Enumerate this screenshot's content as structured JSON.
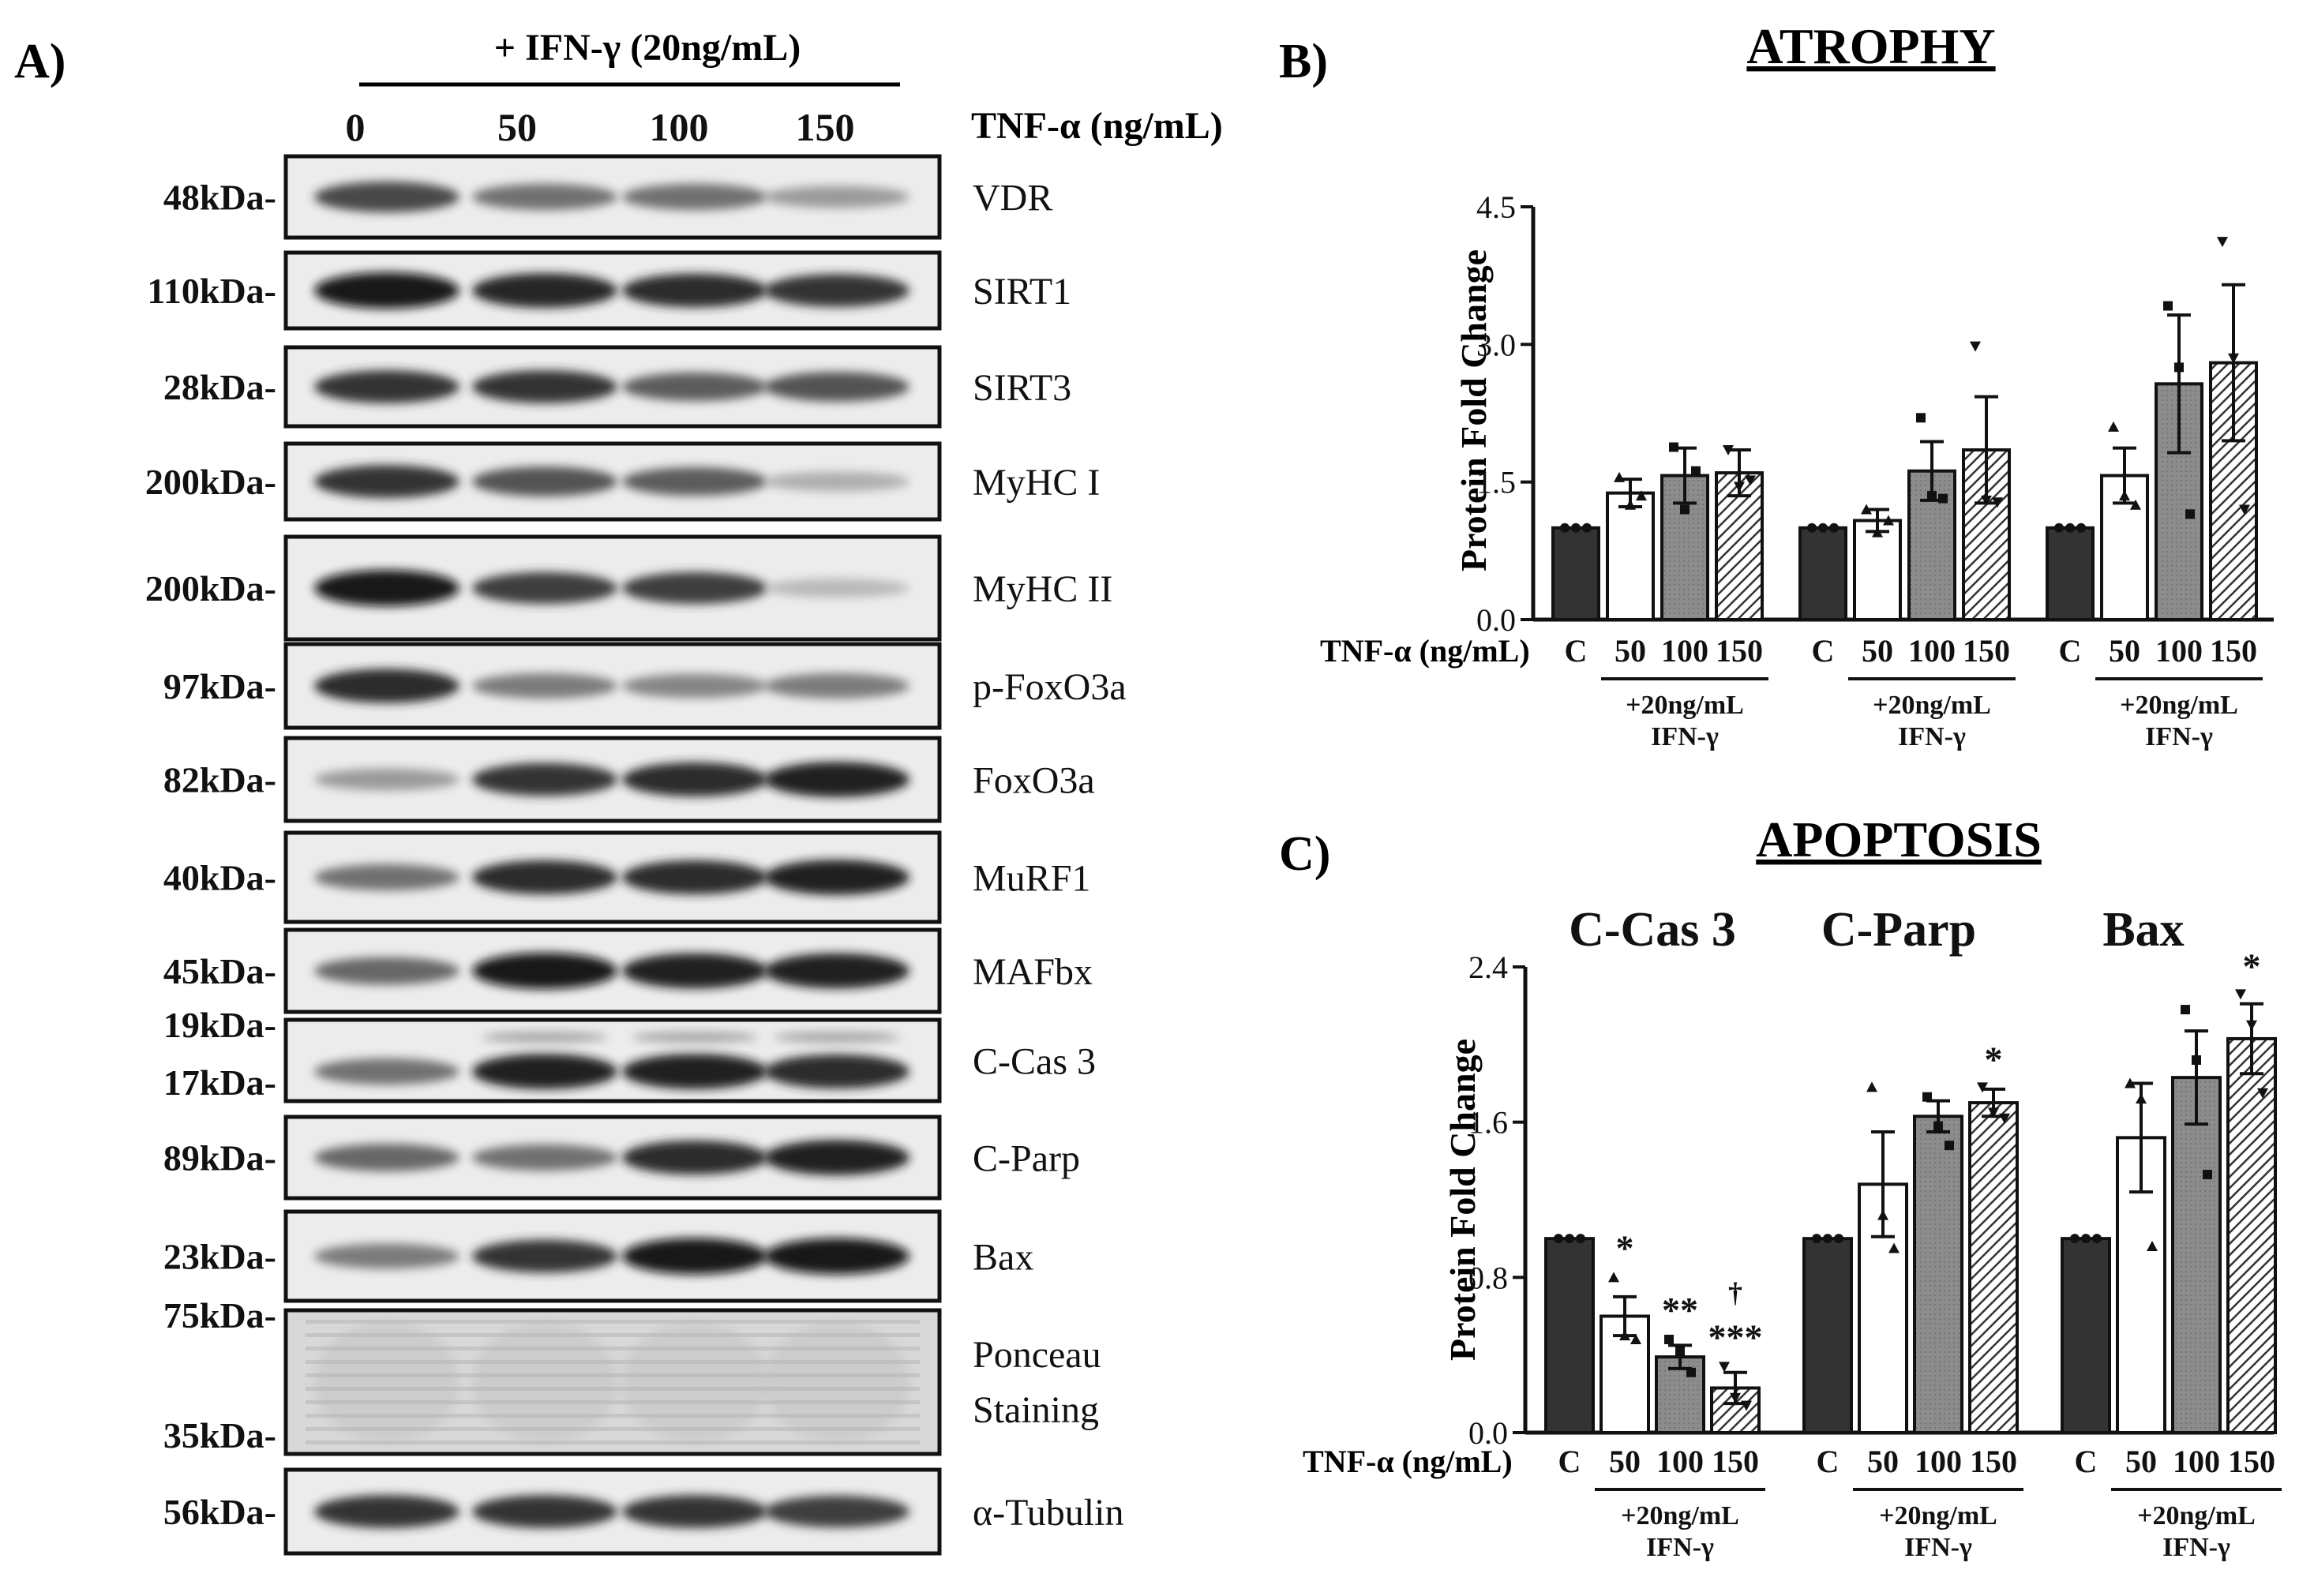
{
  "panelA": {
    "letter": "A)",
    "ifn_label": "+ IFN-γ (20ng/mL)",
    "tnf_label": "TNF-α (ng/mL)",
    "lanes": [
      "0",
      "50",
      "100",
      "150"
    ],
    "blots": [
      {
        "protein": "VDR",
        "kda": [
          "48kDa-"
        ],
        "bands": [
          0.75,
          0.55,
          0.55,
          0.35
        ]
      },
      {
        "protein": "SIRT1",
        "kda": [
          "110kDa-"
        ],
        "bands": [
          1.0,
          0.92,
          0.88,
          0.85
        ]
      },
      {
        "protein": "SIRT3",
        "kda": [
          "28kDa-"
        ],
        "bands": [
          0.85,
          0.85,
          0.65,
          0.7
        ]
      },
      {
        "protein": "MyHC I",
        "kda": [
          "200kDa-"
        ],
        "bands": [
          0.85,
          0.7,
          0.65,
          0.25
        ]
      },
      {
        "protein": "MyHC II",
        "kda": [
          "200kDa-"
        ],
        "bands": [
          1.0,
          0.8,
          0.8,
          0.2
        ]
      },
      {
        "protein": "p-FoxO3a",
        "kda": [
          "97kDa-"
        ],
        "bands": [
          0.9,
          0.5,
          0.45,
          0.5
        ]
      },
      {
        "protein": "FoxO3a",
        "kda": [
          "82kDa-"
        ],
        "bands": [
          0.35,
          0.85,
          0.9,
          0.95
        ]
      },
      {
        "protein": "MuRF1",
        "kda": [
          "40kDa-"
        ],
        "bands": [
          0.55,
          0.9,
          0.9,
          0.95
        ]
      },
      {
        "protein": "MAFbx",
        "kda": [
          "45kDa-"
        ],
        "bands": [
          0.6,
          1.0,
          0.95,
          0.95
        ]
      },
      {
        "protein": "C-Cas 3",
        "kda": [
          "19kDa-",
          "17kDa-"
        ],
        "bands": [
          0.55,
          0.95,
          0.95,
          0.9
        ]
      },
      {
        "protein": "C-Parp",
        "kda": [
          "89kDa-"
        ],
        "bands": [
          0.6,
          0.55,
          0.9,
          0.95
        ]
      },
      {
        "protein": "Bax",
        "kda": [
          "23kDa-"
        ],
        "bands": [
          0.5,
          0.85,
          1.0,
          1.0
        ]
      },
      {
        "protein": "Ponceau Staining",
        "kda": [
          "75kDa-",
          "35kDa-"
        ],
        "bands": [
          0.2,
          0.2,
          0.2,
          0.2
        ]
      },
      {
        "protein": "α-Tubulin",
        "kda": [
          "56kDa-"
        ],
        "bands": [
          0.85,
          0.85,
          0.85,
          0.8
        ]
      }
    ]
  },
  "panelB": {
    "letter": "B)",
    "title": "ATROPHY",
    "ylabel": "Protein Fold Change",
    "yticks": [
      "0.0",
      "1.5",
      "3.0",
      "4.5"
    ],
    "tnf_label": "TNF-α (ng/mL)",
    "cats": [
      "C",
      "50",
      "100",
      "150"
    ],
    "group_note_1": "+20ng/mL",
    "group_note_2": "IFN-γ"
  },
  "panelC": {
    "letter": "C)",
    "title": "APOPTOSIS",
    "ylabel": "Protein Fold Change",
    "yticks": [
      "0.0",
      "0.8",
      "1.6",
      "2.4"
    ],
    "tnf_label": "TNF-α (ng/mL)",
    "cats": [
      "C",
      "50",
      "100",
      "150"
    ],
    "group_names": [
      "C-Cas 3",
      "C-Parp",
      "Bax"
    ],
    "group_note_1": "+20ng/mL",
    "group_note_2": "IFN-γ"
  },
  "chart_data": [
    {
      "type": "bar",
      "title": "ATROPHY",
      "ylabel": "Protein Fold Change",
      "ylim": [
        0,
        4.5
      ],
      "categories": [
        "C",
        "50",
        "100",
        "150"
      ],
      "series": [
        {
          "values": [
            1.0,
            1.38,
            1.57,
            1.6
          ],
          "errors": [
            0,
            0.15,
            0.3,
            0.25
          ],
          "points": [
            [
              1,
              1,
              1
            ],
            [
              1.55,
              1.25,
              1.35
            ],
            [
              1.88,
              1.2,
              1.62
            ],
            [
              1.85,
              1.45,
              1.52
            ]
          ]
        },
        {
          "values": [
            1.0,
            1.08,
            1.62,
            1.85
          ],
          "errors": [
            0,
            0.12,
            0.32,
            0.58
          ],
          "points": [
            [
              1,
              1,
              1
            ],
            [
              1.2,
              0.95,
              1.08
            ],
            [
              2.2,
              1.35,
              1.32
            ],
            [
              2.98,
              1.3,
              1.28
            ]
          ]
        },
        {
          "values": [
            1.0,
            1.57,
            2.57,
            2.8
          ],
          "errors": [
            0,
            0.3,
            0.75,
            0.85
          ],
          "points": [
            [
              1,
              1,
              1
            ],
            [
              2.1,
              1.35,
              1.25
            ],
            [
              3.42,
              2.75,
              1.15
            ],
            [
              4.12,
              2.85,
              1.2
            ]
          ]
        }
      ],
      "significance": []
    },
    {
      "type": "bar",
      "title": "APOPTOSIS",
      "ylabel": "Protein Fold Change",
      "ylim": [
        0,
        2.4
      ],
      "categories": [
        "C",
        "50",
        "100",
        "150"
      ],
      "series": [
        {
          "name": "C-Cas 3",
          "values": [
            1.0,
            0.6,
            0.39,
            0.23
          ],
          "errors": [
            0,
            0.1,
            0.06,
            0.08
          ],
          "points": [
            [
              1,
              1,
              1
            ],
            [
              0.8,
              0.5,
              0.48
            ],
            [
              0.48,
              0.42,
              0.31
            ],
            [
              0.34,
              0.18,
              0.14
            ]
          ]
        },
        {
          "name": "C-Parp",
          "values": [
            1.0,
            1.28,
            1.63,
            1.7
          ],
          "errors": [
            0,
            0.27,
            0.08,
            0.07
          ],
          "points": [
            [
              1,
              1,
              1
            ],
            [
              1.78,
              1.12,
              0.95
            ],
            [
              1.73,
              1.58,
              1.48
            ],
            [
              1.78,
              1.65,
              1.62
            ]
          ]
        },
        {
          "name": "Bax",
          "values": [
            1.0,
            1.52,
            1.83,
            2.03
          ],
          "errors": [
            0,
            0.28,
            0.24,
            0.18
          ],
          "points": [
            [
              1,
              1,
              1
            ],
            [
              1.8,
              1.72,
              0.96
            ],
            [
              2.18,
              1.92,
              1.33
            ],
            [
              2.26,
              2.1,
              1.75
            ]
          ]
        }
      ],
      "significance": [
        {
          "series": 0,
          "category": 1,
          "text": "*"
        },
        {
          "series": 0,
          "category": 2,
          "text": "**"
        },
        {
          "series": 0,
          "category": 3,
          "text": "***"
        },
        {
          "series": 0,
          "category": 3,
          "text": "†"
        },
        {
          "series": 1,
          "category": 3,
          "text": "*"
        },
        {
          "series": 2,
          "category": 3,
          "text": "*"
        }
      ]
    }
  ]
}
